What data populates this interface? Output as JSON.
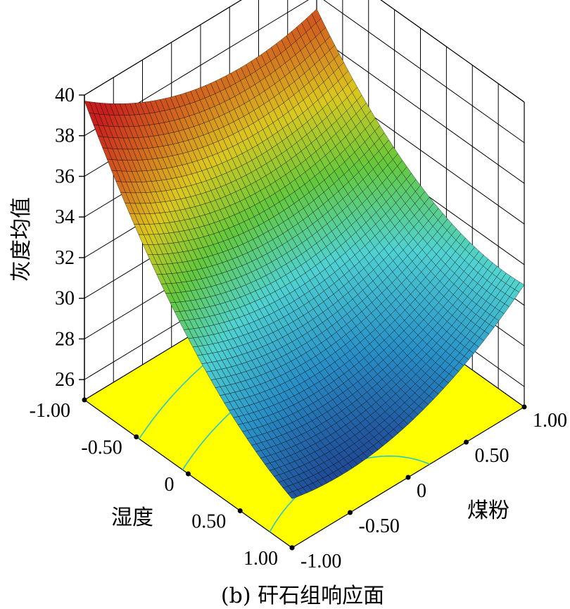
{
  "chart_data": {
    "type": "surface",
    "caption": "(b) 矸石组响应面",
    "x_axis": {
      "label": "湿度",
      "ticks": [
        "-1.00",
        "-0.50",
        "0",
        "0.50",
        "1.00"
      ],
      "range": [
        -1,
        1
      ]
    },
    "y_axis": {
      "label": "煤粉",
      "ticks": [
        "-1.00",
        "-0.50",
        "0",
        "0.50",
        "1.00"
      ],
      "range": [
        -1,
        1
      ]
    },
    "z_axis": {
      "label": "灰度均值",
      "ticks": [
        "26",
        "28",
        "30",
        "32",
        "34",
        "36",
        "38",
        "40"
      ],
      "range": [
        25,
        40
      ]
    },
    "corner_values": [
      {
        "湿度": -1,
        "煤粉": -1,
        "灰度均值": 38.8
      },
      {
        "湿度": -1,
        "煤粉": 1,
        "灰度均值": 37.0
      },
      {
        "湿度": 1,
        "煤粉": -1,
        "灰度均值": 27.0
      },
      {
        "湿度": 1,
        "煤粉": 1,
        "灰度均值": 30.0
      }
    ],
    "minimum": {
      "湿度": 0.6,
      "煤粉": 0.2,
      "灰度均值": 26.8
    },
    "floor_contour_color": "#ffff00",
    "contour_line_color": "#28c8c8",
    "colormap": [
      "#1e3c8c",
      "#2890c8",
      "#50d2d2",
      "#64c83c",
      "#dcc81e",
      "#d2641e",
      "#c81e1e"
    ],
    "grid": true
  }
}
